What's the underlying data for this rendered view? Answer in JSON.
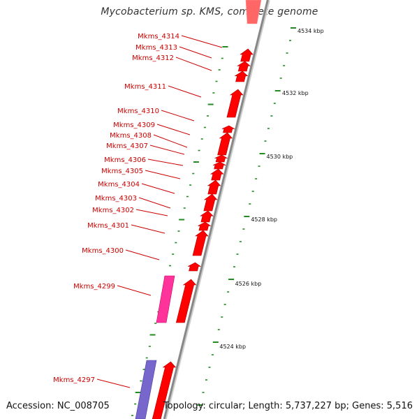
{
  "title": "Mycobacterium sp. KMS, complete genome",
  "footer": {
    "accession": "Accession: NC_008705",
    "summary": "Topology: circular; Length: 5,737,227 bp; Genes: 5,516"
  },
  "colors": {
    "gene_label": "#cc0000",
    "cds_forward": "#ff0000",
    "cds_forward_light": "#ff6666",
    "rna_feature": "#ff3399",
    "reverse_feature": "#7766cc",
    "tick_mark": "#228b22",
    "backbone": "#888888"
  },
  "gene_labels": [
    "Mkms_4314",
    "Mkms_4313",
    "Mkms_4312",
    "Mkms_4311",
    "Mkms_4310",
    "Mkms_4309",
    "Mkms_4308",
    "Mkms_4307",
    "Mkms_4306",
    "Mkms_4305",
    "Mkms_4304",
    "Mkms_4303",
    "Mkms_4302",
    "Mkms_4301",
    "Mkms_4300",
    "Mkms_4299",
    "Mkms_4297"
  ],
  "scale_labels": [
    "4534 kbp",
    "4532 kbp",
    "4530 kbp",
    "4528 kbp",
    "4526 kbp",
    "4524 kbp"
  ]
}
